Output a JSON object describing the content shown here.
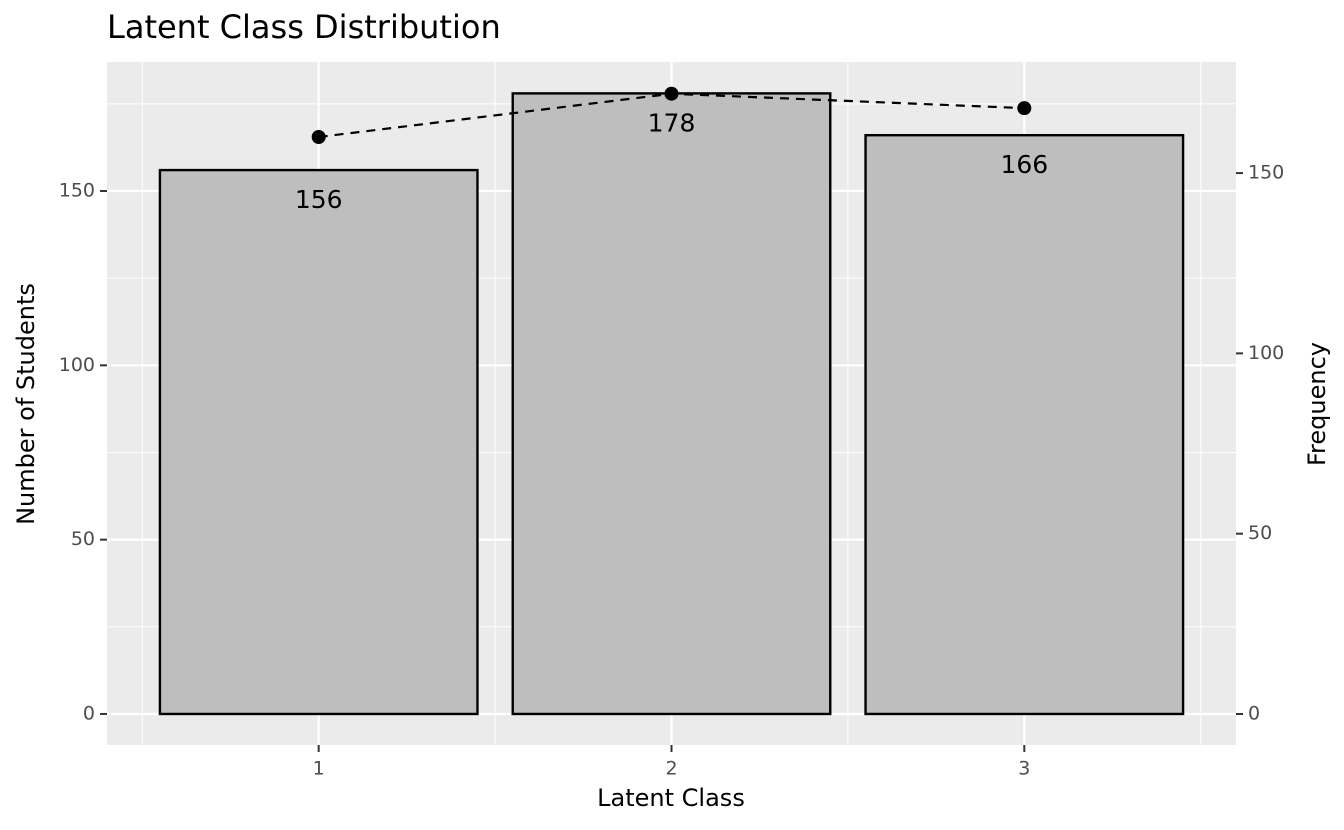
{
  "chart_data": {
    "type": "bar",
    "title": "Latent Class Distribution",
    "x_label": "Latent Class",
    "y_label": "Number of Students",
    "y2_label": "Frequency",
    "categories": [
      "1",
      "2",
      "3"
    ],
    "series": [
      {
        "color": "#bebebe",
        "edgecolor": "#000000",
        "values": [
          156,
          178,
          166
        ]
      },
      {
        "type": "line",
        "color": "#000000",
        "linestyle": "dashed",
        "axis": "y2",
        "values": [
          160,
          172,
          168
        ]
      }
    ],
    "ylim": [
      -8.9,
      187
    ],
    "yticks": [
      0,
      50,
      100,
      150
    ],
    "y2lim": [
      -8.6,
      180.8
    ],
    "y2ticks": [
      0,
      50,
      100,
      150
    ],
    "grid": true,
    "minor_grid": true
  }
}
